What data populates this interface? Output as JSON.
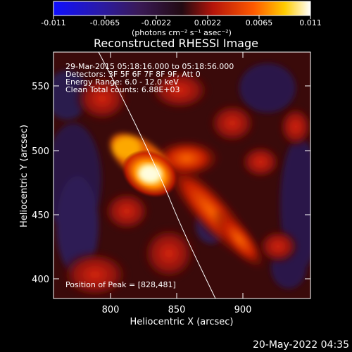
{
  "colorbar": {
    "tick_labels": [
      "-0.011",
      "-0.0065",
      "-0.0022",
      "0.0022",
      "0.0065",
      "0.011"
    ],
    "units_label": "(photons cm⁻² s⁻¹ asec⁻²)"
  },
  "image": {
    "title": "Reconstructed RHESSI Image",
    "annotations": [
      "29-Mar-2015 05:18:16.000 to 05:18:56.000",
      "Detectors: 3F 5F 6F 7F 8F 9F, Att 0",
      "Energy Range: 6.0 - 12.0 keV",
      "Clean    Total counts: 6.88E+03"
    ],
    "peak_label": "Position of Peak = [828,481]",
    "xlabel": "Heliocentric X (arcsec)",
    "ylabel": "Heliocentric Y (arcsec)",
    "x_ticks": [
      "800",
      "850",
      "900"
    ],
    "y_ticks": [
      "550",
      "500",
      "450",
      "400"
    ]
  },
  "footer": {
    "timestamp": "20-May-2022 04:35"
  }
}
